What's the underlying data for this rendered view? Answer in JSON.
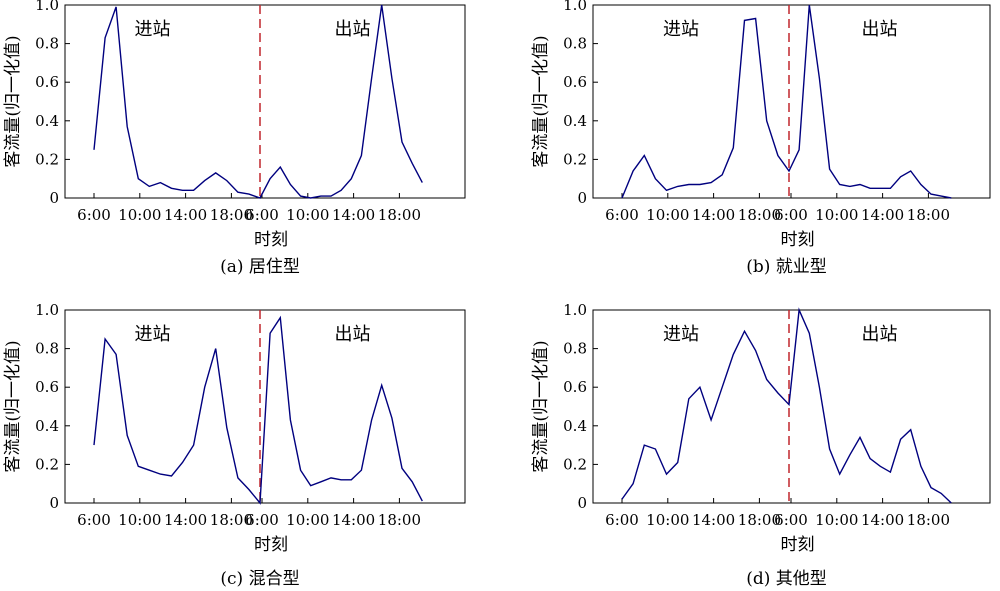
{
  "chart_data": [
    {
      "type": "line",
      "caption": "(a) 居住型",
      "xlabel": "时刻",
      "ylabel": "客流量(归一化值)",
      "ylim": [
        0,
        1
      ],
      "yticks": [
        "0",
        "0.2",
        "0.4",
        "0.6",
        "0.8",
        "1.0"
      ],
      "xticks": [
        "6:00",
        "10:00",
        "14:00",
        "18:00",
        "6:00",
        "10:00",
        "14:00",
        "18:00"
      ],
      "divider_label_left": "进站",
      "divider_label_right": "出站",
      "line_color": "#00007f",
      "divider_color": "#c0272d",
      "hours": [
        6,
        7,
        8,
        9,
        10,
        11,
        12,
        13,
        14,
        15,
        16,
        17,
        18,
        19,
        20,
        21,
        22,
        23
      ],
      "in": [
        0.25,
        0.83,
        0.99,
        0.37,
        0.1,
        0.06,
        0.08,
        0.05,
        0.04,
        0.04,
        0.09,
        0.13,
        0.09,
        0.03,
        0.02,
        0.0
      ],
      "out": [
        0.0,
        0.1,
        0.16,
        0.07,
        0.01,
        0.0,
        0.01,
        0.01,
        0.04,
        0.1,
        0.22,
        0.62,
        1.0,
        0.62,
        0.29,
        0.18,
        0.08
      ]
    },
    {
      "type": "line",
      "caption": "(b) 就业型",
      "xlabel": "时刻",
      "ylabel": "客流量(归一化值)",
      "ylim": [
        0,
        1
      ],
      "yticks": [
        "0",
        "0.2",
        "0.4",
        "0.6",
        "0.8",
        "1.0"
      ],
      "xticks": [
        "6:00",
        "10:00",
        "14:00",
        "18:00",
        "6:00",
        "10:00",
        "14:00",
        "18:00"
      ],
      "divider_label_left": "进站",
      "divider_label_right": "出站",
      "line_color": "#00007f",
      "divider_color": "#c0272d",
      "in": [
        0.0,
        0.14,
        0.22,
        0.1,
        0.04,
        0.06,
        0.07,
        0.07,
        0.08,
        0.12,
        0.26,
        0.92,
        0.93,
        0.4,
        0.22,
        0.14
      ],
      "out": [
        0.14,
        0.25,
        1.0,
        0.62,
        0.15,
        0.07,
        0.06,
        0.07,
        0.05,
        0.05,
        0.05,
        0.11,
        0.14,
        0.07,
        0.02,
        0.01,
        0.0
      ]
    },
    {
      "type": "line",
      "caption": "(c) 混合型",
      "xlabel": "时刻",
      "ylabel": "客流量(归一化值)",
      "ylim": [
        0,
        1
      ],
      "yticks": [
        "0",
        "0.2",
        "0.4",
        "0.6",
        "0.8",
        "1.0"
      ],
      "xticks": [
        "6:00",
        "10:00",
        "14:00",
        "18:00",
        "6:00",
        "10:00",
        "14:00",
        "18:00"
      ],
      "divider_label_left": "进站",
      "divider_label_right": "出站",
      "line_color": "#00007f",
      "divider_color": "#c0272d",
      "in": [
        0.3,
        0.85,
        0.77,
        0.35,
        0.19,
        0.17,
        0.15,
        0.14,
        0.21,
        0.3,
        0.6,
        0.8,
        0.39,
        0.13,
        0.07,
        0.0
      ],
      "out": [
        0.0,
        0.88,
        0.96,
        0.43,
        0.17,
        0.09,
        0.11,
        0.13,
        0.12,
        0.12,
        0.17,
        0.43,
        0.61,
        0.44,
        0.18,
        0.11,
        0.01
      ]
    },
    {
      "type": "line",
      "caption": "(d) 其他型",
      "xlabel": "时刻",
      "ylabel": "客流量(归一化值)",
      "ylim": [
        0,
        1
      ],
      "yticks": [
        "0",
        "0.2",
        "0.4",
        "0.6",
        "0.8",
        "1.0"
      ],
      "xticks": [
        "6:00",
        "10:00",
        "14:00",
        "18:00",
        "6:00",
        "10:00",
        "14:00",
        "18:00"
      ],
      "divider_label_left": "进站",
      "divider_label_right": "出站",
      "line_color": "#00007f",
      "divider_color": "#c0272d",
      "in": [
        0.02,
        0.1,
        0.3,
        0.28,
        0.15,
        0.21,
        0.54,
        0.6,
        0.43,
        0.6,
        0.77,
        0.89,
        0.79,
        0.64,
        0.57,
        0.51
      ],
      "out": [
        0.51,
        1.0,
        0.88,
        0.6,
        0.28,
        0.15,
        0.25,
        0.34,
        0.23,
        0.19,
        0.16,
        0.33,
        0.38,
        0.19,
        0.08,
        0.05,
        0.0
      ]
    }
  ]
}
